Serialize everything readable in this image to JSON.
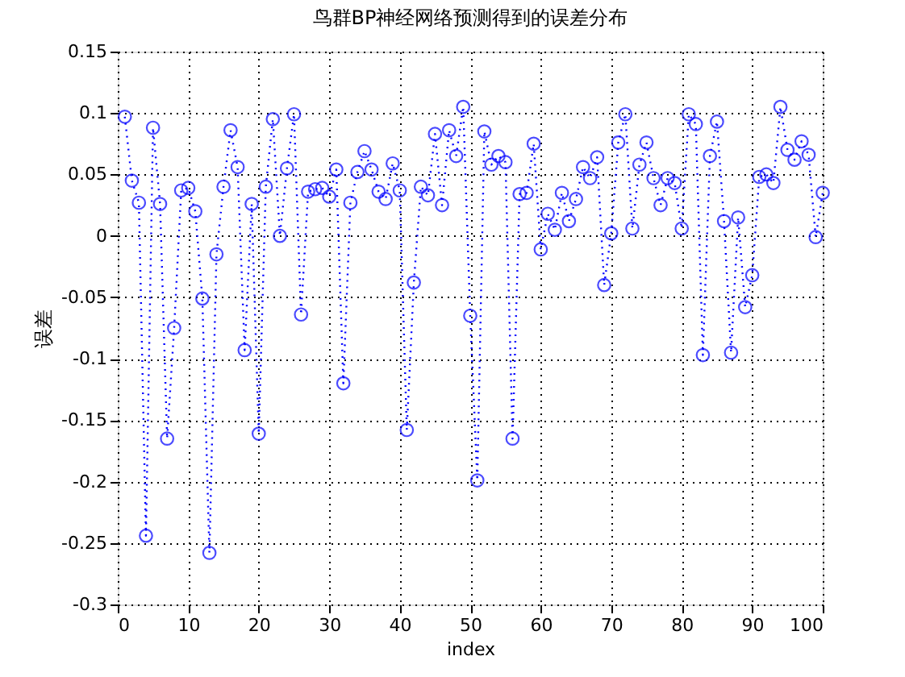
{
  "chart_data": {
    "type": "line",
    "title": "鸟群BP神经网络预测得到的误差分布",
    "xlabel": "index",
    "ylabel": "误差",
    "x": [
      1,
      2,
      3,
      4,
      5,
      6,
      7,
      8,
      9,
      10,
      11,
      12,
      13,
      14,
      15,
      16,
      17,
      18,
      19,
      20,
      21,
      22,
      23,
      24,
      25,
      26,
      27,
      28,
      29,
      30,
      31,
      32,
      33,
      34,
      35,
      36,
      37,
      38,
      39,
      40,
      41,
      42,
      43,
      44,
      45,
      46,
      47,
      48,
      49,
      50,
      51,
      52,
      53,
      54,
      55,
      56,
      57,
      58,
      59,
      60,
      61,
      62,
      63,
      64,
      65,
      66,
      67,
      68,
      69,
      70,
      71,
      72,
      73,
      74,
      75,
      76,
      77,
      78,
      79,
      80,
      81,
      82,
      83,
      84,
      85,
      86,
      87,
      88,
      89,
      90,
      91,
      92,
      93,
      94,
      95,
      96,
      97,
      98,
      99,
      100
    ],
    "series": [
      {
        "color": "#0000ff",
        "values": [
          0.097,
          0.045,
          0.027,
          -0.244,
          0.088,
          0.026,
          -0.165,
          -0.075,
          0.037,
          0.039,
          0.02,
          -0.051,
          -0.258,
          -0.015,
          0.04,
          0.086,
          0.056,
          -0.093,
          0.026,
          -0.161,
          0.04,
          0.095,
          0.0,
          0.055,
          0.099,
          -0.064,
          0.036,
          0.038,
          0.039,
          0.032,
          0.054,
          -0.12,
          0.027,
          0.052,
          0.069,
          0.054,
          0.036,
          0.03,
          0.059,
          0.037,
          -0.158,
          -0.038,
          0.04,
          0.033,
          0.083,
          0.025,
          0.086,
          0.065,
          0.105,
          -0.065,
          -0.199,
          0.085,
          0.058,
          0.065,
          0.06,
          -0.165,
          0.034,
          0.035,
          0.075,
          -0.011,
          0.018,
          0.005,
          0.035,
          0.012,
          0.03,
          0.056,
          0.047,
          0.064,
          -0.04,
          0.002,
          0.076,
          0.099,
          0.006,
          0.058,
          0.076,
          0.047,
          0.025,
          0.047,
          0.043,
          0.006,
          0.099,
          0.091,
          -0.097,
          0.065,
          0.093,
          0.012,
          -0.095,
          0.015,
          -0.058,
          -0.032,
          0.048,
          0.05,
          0.043,
          0.105,
          0.07,
          0.062,
          0.077,
          0.066,
          -0.001,
          0.035
        ]
      }
    ],
    "xlim": [
      0,
      100
    ],
    "xticks": [
      0,
      10,
      20,
      30,
      40,
      50,
      60,
      70,
      80,
      90,
      100
    ],
    "ylim": [
      -0.3,
      0.15
    ],
    "yticks": [
      -0.3,
      -0.25,
      -0.2,
      -0.15,
      -0.1,
      -0.05,
      0,
      0.05,
      0.1,
      0.15
    ],
    "grid": true,
    "marker": "circle",
    "line_style": "dotted"
  }
}
